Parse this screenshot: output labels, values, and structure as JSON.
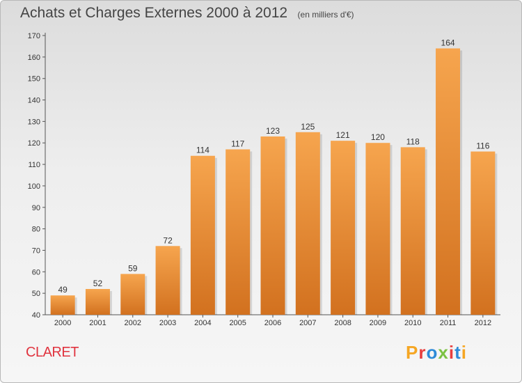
{
  "header": {
    "title": "Achats et Charges Externes 2000 à 2012",
    "unit": "(en milliers d'€)"
  },
  "footer": {
    "commune": "CLARET",
    "brand": "Proxiti",
    "brand_colors": [
      "#f5a623",
      "#e83e3e",
      "#2e8bd8",
      "#7cc242",
      "#e83e3e",
      "#2e8bd8",
      "#f5a623"
    ]
  },
  "colors": {
    "bar_top": "#f6a54e",
    "bar_bottom": "#d2711f",
    "commune_text": "#e0343f",
    "text": "#333333"
  },
  "chart_data": {
    "type": "bar",
    "title": "Achats et Charges Externes 2000 à 2012",
    "unit": "(en milliers d'€)",
    "categories": [
      "2000",
      "2001",
      "2002",
      "2003",
      "2004",
      "2005",
      "2006",
      "2007",
      "2008",
      "2009",
      "2010",
      "2011",
      "2012"
    ],
    "values": [
      49,
      52,
      59,
      72,
      114,
      117,
      123,
      125,
      121,
      120,
      118,
      164,
      116
    ],
    "ylim": [
      40,
      170
    ],
    "yticks": [
      40,
      50,
      60,
      70,
      80,
      90,
      100,
      110,
      120,
      130,
      140,
      150,
      160,
      170
    ],
    "grid": false,
    "legend": "none"
  }
}
